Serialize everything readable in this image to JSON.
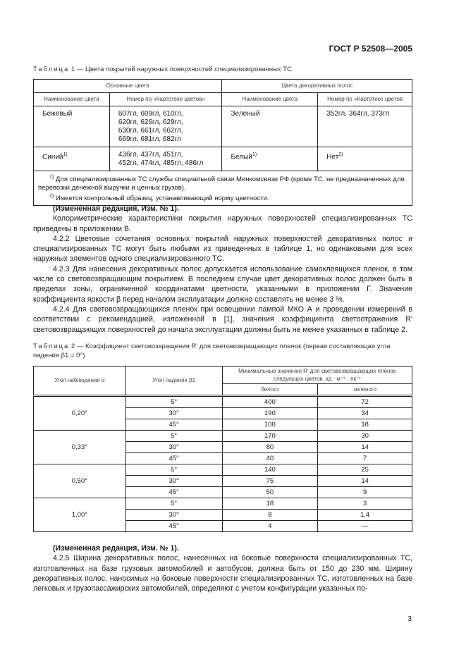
{
  "header": "ГОСТ Р 52508—2005",
  "table1": {
    "caption_label": "Таблица",
    "caption_text": "1 — Цвета покрытий наружных поверхностей специализированных ТС",
    "group_headers": [
      "Основные цвета",
      "Цвета декоративных полос"
    ],
    "columns": [
      "Наименование цвета",
      "Номер по «Картотеке цветов»",
      "Наименование цвета",
      "Номер по «Картотеке цветов"
    ],
    "rows": [
      {
        "c1": "Бежевый",
        "c1sup": "",
        "c2": [
          "607гл, 609гл, 610гл,",
          "620гл, 626гл, 629гл,",
          "630гл, 661гл, 662гл,",
          "669гл, 681гл, 682гл"
        ],
        "c3": "Зеленый",
        "c3sup": "",
        "c4": "352гл, 364гл, 373гл",
        "c4sup": ""
      },
      {
        "c1": "Синий",
        "c1sup": "1)",
        "c2": [
          "436гл, 437гл, 451гл,",
          "452гл, 474гл, 485гл, 486гл"
        ],
        "c3": "Белый",
        "c3sup": "1)",
        "c4": "Нет",
        "c4sup": "2)"
      }
    ],
    "footnotes": [
      {
        "mark": "1)",
        "text": "Для специализированных ТС службы специальной связи Минкомсвязи РФ (кроме ТС, не предназначенных для перевозки денежной выручки и ценных грузов)."
      },
      {
        "mark": "2)",
        "text": "Имеется контрольный образец, устанавливающий норму цветности."
      }
    ]
  },
  "paragraphs1": [
    {
      "bold": true,
      "text": "(Измененная редакция, Изм. № 1)."
    },
    {
      "bold": false,
      "text": "Колориметрические характеристики покрытия наружных поверхностей специализированных ТС приведены в приложении В."
    },
    {
      "bold": false,
      "text": "4.2.2 Цветовые сочетания основных покрытий наружных поверхностей декоративных полос и специализированных ТС могут быть любыми из приведенных в таблице 1, но одинаковыми для всех наружных элементов одного специализированного ТС."
    },
    {
      "bold": false,
      "text": "4.2.3 Для нанесения декоративных полос допускается использование самоклеящихся пленок, в том числе со световозвращающим покрытием. В последнем случае цвет декоративных полос должен быть в пределах зоны, ограниченной координатами цветности, указанными в приложении Г. Значение коэффициента яркости β перед началом эксплуатации должно составлять не менее 3 %."
    },
    {
      "bold": false,
      "text": "4.2.4 Для световозвращающихся пленок при освещении лампой МКО А и проведении измерений в соответствии с рекомендацией, изложенной в [1], значения коэффициента светоотражения R' световозвращающих поверхностей до начала эксплуатации должны быть не менее указанных в таблице 2."
    }
  ],
  "table2": {
    "caption_label": "Таблица",
    "caption_text": "2 — Коэффициент световозвращения R' для световозвращающих пленок (первая составляющая угла падения β1 = 0°)",
    "col_alpha": "Угол наблюдения α",
    "col_beta": "Угол падения β2",
    "col_min": "Минимальные значения R' для световозвращающих пленок следующих цветов, кд · м⁻² · лк⁻¹",
    "col_white": "белого",
    "col_green": "зеленого",
    "groups": [
      {
        "alpha": "0,20°",
        "rows": [
          [
            "5°",
            "400",
            "72"
          ],
          [
            "30°",
            "190",
            "34"
          ],
          [
            "45°",
            "100",
            "18"
          ]
        ]
      },
      {
        "alpha": "0,33°",
        "rows": [
          [
            "5°",
            "170",
            "30"
          ],
          [
            "30°",
            "80",
            "14"
          ],
          [
            "45°",
            "40",
            "7"
          ]
        ]
      },
      {
        "alpha": "0,50°",
        "rows": [
          [
            "5°",
            "140",
            "25"
          ],
          [
            "30°",
            "75",
            "14"
          ],
          [
            "45°",
            "50",
            "9"
          ]
        ]
      },
      {
        "alpha": "1,00°",
        "rows": [
          [
            "5°",
            "18",
            "3"
          ],
          [
            "30°",
            "8",
            "1,4"
          ],
          [
            "45°",
            "4",
            "—"
          ]
        ]
      }
    ]
  },
  "paragraphs2": [
    {
      "bold": true,
      "text": "(Измененная редакция, Изм. № 1)."
    },
    {
      "bold": false,
      "text": "4.2.5 Ширина декоративных полос, нанесенных на боковые поверхности специализированных ТС, изготовленных на базе грузовых автомобилей и автобусов, должна быть от 150 до 230 мм. Ширину декоративных полос, наносимых на боковые поверхности специализированных ТС, изготовленных на базе легковых и грузопассажирских автомобилей, определяют с учетом конфигурации указанных по-"
    }
  ],
  "page_number": "3"
}
